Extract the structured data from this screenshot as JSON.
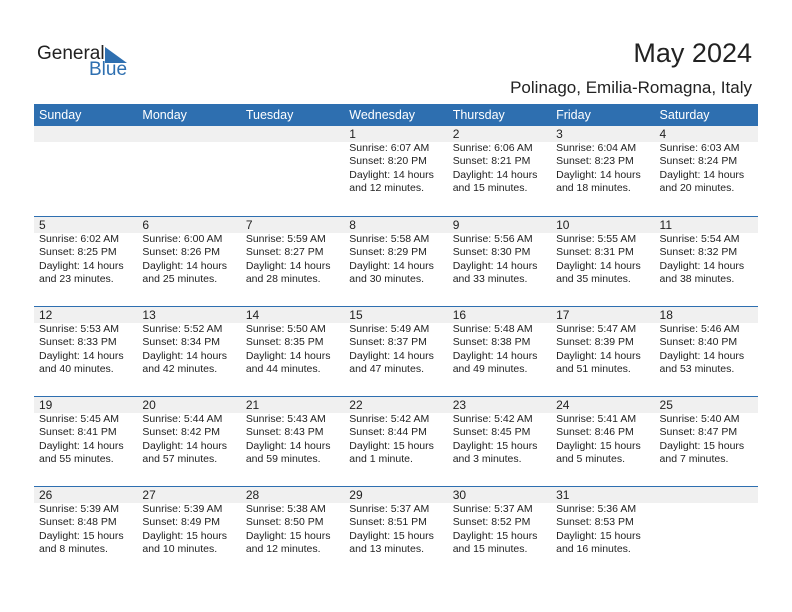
{
  "logo": {
    "word1": "General",
    "word2": "Blue"
  },
  "title": "May 2024",
  "location": "Polinago, Emilia-Romagna, Italy",
  "colors": {
    "accent": "#2e6fb0",
    "date_band": "#f0f0f0"
  },
  "weekdays": [
    "Sunday",
    "Monday",
    "Tuesday",
    "Wednesday",
    "Thursday",
    "Friday",
    "Saturday"
  ],
  "weeks": [
    [
      null,
      null,
      null,
      {
        "day": "1",
        "sunrise": "Sunrise: 6:07 AM",
        "sunset": "Sunset: 8:20 PM",
        "daylight": "Daylight: 14 hours",
        "minutes": "and 12 minutes."
      },
      {
        "day": "2",
        "sunrise": "Sunrise: 6:06 AM",
        "sunset": "Sunset: 8:21 PM",
        "daylight": "Daylight: 14 hours",
        "minutes": "and 15 minutes."
      },
      {
        "day": "3",
        "sunrise": "Sunrise: 6:04 AM",
        "sunset": "Sunset: 8:23 PM",
        "daylight": "Daylight: 14 hours",
        "minutes": "and 18 minutes."
      },
      {
        "day": "4",
        "sunrise": "Sunrise: 6:03 AM",
        "sunset": "Sunset: 8:24 PM",
        "daylight": "Daylight: 14 hours",
        "minutes": "and 20 minutes."
      }
    ],
    [
      {
        "day": "5",
        "sunrise": "Sunrise: 6:02 AM",
        "sunset": "Sunset: 8:25 PM",
        "daylight": "Daylight: 14 hours",
        "minutes": "and 23 minutes."
      },
      {
        "day": "6",
        "sunrise": "Sunrise: 6:00 AM",
        "sunset": "Sunset: 8:26 PM",
        "daylight": "Daylight: 14 hours",
        "minutes": "and 25 minutes."
      },
      {
        "day": "7",
        "sunrise": "Sunrise: 5:59 AM",
        "sunset": "Sunset: 8:27 PM",
        "daylight": "Daylight: 14 hours",
        "minutes": "and 28 minutes."
      },
      {
        "day": "8",
        "sunrise": "Sunrise: 5:58 AM",
        "sunset": "Sunset: 8:29 PM",
        "daylight": "Daylight: 14 hours",
        "minutes": "and 30 minutes."
      },
      {
        "day": "9",
        "sunrise": "Sunrise: 5:56 AM",
        "sunset": "Sunset: 8:30 PM",
        "daylight": "Daylight: 14 hours",
        "minutes": "and 33 minutes."
      },
      {
        "day": "10",
        "sunrise": "Sunrise: 5:55 AM",
        "sunset": "Sunset: 8:31 PM",
        "daylight": "Daylight: 14 hours",
        "minutes": "and 35 minutes."
      },
      {
        "day": "11",
        "sunrise": "Sunrise: 5:54 AM",
        "sunset": "Sunset: 8:32 PM",
        "daylight": "Daylight: 14 hours",
        "minutes": "and 38 minutes."
      }
    ],
    [
      {
        "day": "12",
        "sunrise": "Sunrise: 5:53 AM",
        "sunset": "Sunset: 8:33 PM",
        "daylight": "Daylight: 14 hours",
        "minutes": "and 40 minutes."
      },
      {
        "day": "13",
        "sunrise": "Sunrise: 5:52 AM",
        "sunset": "Sunset: 8:34 PM",
        "daylight": "Daylight: 14 hours",
        "minutes": "and 42 minutes."
      },
      {
        "day": "14",
        "sunrise": "Sunrise: 5:50 AM",
        "sunset": "Sunset: 8:35 PM",
        "daylight": "Daylight: 14 hours",
        "minutes": "and 44 minutes."
      },
      {
        "day": "15",
        "sunrise": "Sunrise: 5:49 AM",
        "sunset": "Sunset: 8:37 PM",
        "daylight": "Daylight: 14 hours",
        "minutes": "and 47 minutes."
      },
      {
        "day": "16",
        "sunrise": "Sunrise: 5:48 AM",
        "sunset": "Sunset: 8:38 PM",
        "daylight": "Daylight: 14 hours",
        "minutes": "and 49 minutes."
      },
      {
        "day": "17",
        "sunrise": "Sunrise: 5:47 AM",
        "sunset": "Sunset: 8:39 PM",
        "daylight": "Daylight: 14 hours",
        "minutes": "and 51 minutes."
      },
      {
        "day": "18",
        "sunrise": "Sunrise: 5:46 AM",
        "sunset": "Sunset: 8:40 PM",
        "daylight": "Daylight: 14 hours",
        "minutes": "and 53 minutes."
      }
    ],
    [
      {
        "day": "19",
        "sunrise": "Sunrise: 5:45 AM",
        "sunset": "Sunset: 8:41 PM",
        "daylight": "Daylight: 14 hours",
        "minutes": "and 55 minutes."
      },
      {
        "day": "20",
        "sunrise": "Sunrise: 5:44 AM",
        "sunset": "Sunset: 8:42 PM",
        "daylight": "Daylight: 14 hours",
        "minutes": "and 57 minutes."
      },
      {
        "day": "21",
        "sunrise": "Sunrise: 5:43 AM",
        "sunset": "Sunset: 8:43 PM",
        "daylight": "Daylight: 14 hours",
        "minutes": "and 59 minutes."
      },
      {
        "day": "22",
        "sunrise": "Sunrise: 5:42 AM",
        "sunset": "Sunset: 8:44 PM",
        "daylight": "Daylight: 15 hours",
        "minutes": "and 1 minute."
      },
      {
        "day": "23",
        "sunrise": "Sunrise: 5:42 AM",
        "sunset": "Sunset: 8:45 PM",
        "daylight": "Daylight: 15 hours",
        "minutes": "and 3 minutes."
      },
      {
        "day": "24",
        "sunrise": "Sunrise: 5:41 AM",
        "sunset": "Sunset: 8:46 PM",
        "daylight": "Daylight: 15 hours",
        "minutes": "and 5 minutes."
      },
      {
        "day": "25",
        "sunrise": "Sunrise: 5:40 AM",
        "sunset": "Sunset: 8:47 PM",
        "daylight": "Daylight: 15 hours",
        "minutes": "and 7 minutes."
      }
    ],
    [
      {
        "day": "26",
        "sunrise": "Sunrise: 5:39 AM",
        "sunset": "Sunset: 8:48 PM",
        "daylight": "Daylight: 15 hours",
        "minutes": "and 8 minutes."
      },
      {
        "day": "27",
        "sunrise": "Sunrise: 5:39 AM",
        "sunset": "Sunset: 8:49 PM",
        "daylight": "Daylight: 15 hours",
        "minutes": "and 10 minutes."
      },
      {
        "day": "28",
        "sunrise": "Sunrise: 5:38 AM",
        "sunset": "Sunset: 8:50 PM",
        "daylight": "Daylight: 15 hours",
        "minutes": "and 12 minutes."
      },
      {
        "day": "29",
        "sunrise": "Sunrise: 5:37 AM",
        "sunset": "Sunset: 8:51 PM",
        "daylight": "Daylight: 15 hours",
        "minutes": "and 13 minutes."
      },
      {
        "day": "30",
        "sunrise": "Sunrise: 5:37 AM",
        "sunset": "Sunset: 8:52 PM",
        "daylight": "Daylight: 15 hours",
        "minutes": "and 15 minutes."
      },
      {
        "day": "31",
        "sunrise": "Sunrise: 5:36 AM",
        "sunset": "Sunset: 8:53 PM",
        "daylight": "Daylight: 15 hours",
        "minutes": "and 16 minutes."
      },
      null
    ]
  ]
}
